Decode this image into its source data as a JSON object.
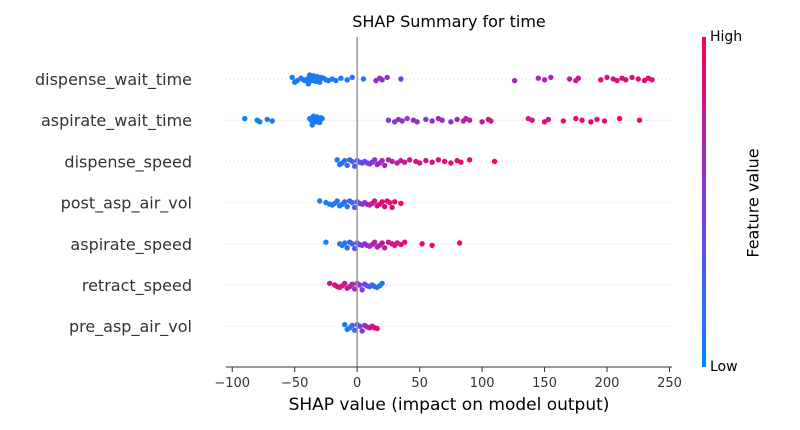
{
  "chart_data": {
    "type": "scatter",
    "title": "SHAP Summary for time",
    "xlabel": "SHAP value (impact on model output)",
    "ylabel": "",
    "xlim": [
      -105,
      252
    ],
    "xticks": [
      -100,
      -50,
      0,
      50,
      100,
      150,
      200,
      250
    ],
    "colorbar": {
      "label": "Feature value",
      "high": "High",
      "low": "Low"
    },
    "colors": {
      "low": "#008bfb",
      "high": "#ff0052",
      "zero_line": "#999999",
      "row_line": "#cccccc"
    },
    "features": [
      {
        "name": "dispense_wait_time",
        "points": [
          [
            -52,
            0.05
          ],
          [
            -50,
            0.1
          ],
          [
            -48,
            0.1
          ],
          [
            -45,
            0.1
          ],
          [
            -43,
            0.1
          ],
          [
            -42,
            0.1
          ],
          [
            -40,
            0.1
          ],
          [
            -39,
            0.1
          ],
          [
            -38,
            0.1
          ],
          [
            -37,
            0.1
          ],
          [
            -36,
            0.1
          ],
          [
            -35,
            0.1
          ],
          [
            -34,
            0.1
          ],
          [
            -33,
            0.1
          ],
          [
            -32,
            0.1
          ],
          [
            -31,
            0.1
          ],
          [
            -30,
            0.1
          ],
          [
            -29,
            0.1
          ],
          [
            -27,
            0.1
          ],
          [
            -25,
            0.1
          ],
          [
            -23,
            0.1
          ],
          [
            -20,
            0.1
          ],
          [
            -17,
            0.1
          ],
          [
            -13,
            0.1
          ],
          [
            -8,
            0.1
          ],
          [
            -4,
            0.15
          ],
          [
            5,
            0.15
          ],
          [
            15,
            0.6
          ],
          [
            18,
            0.6
          ],
          [
            20,
            0.6
          ],
          [
            24,
            0.6
          ],
          [
            35,
            0.5
          ],
          [
            126,
            0.65
          ],
          [
            145,
            0.65
          ],
          [
            150,
            0.7
          ],
          [
            155,
            0.65
          ],
          [
            170,
            0.75
          ],
          [
            175,
            0.8
          ],
          [
            177,
            0.75
          ],
          [
            195,
            0.9
          ],
          [
            200,
            0.85
          ],
          [
            205,
            0.85
          ],
          [
            208,
            0.85
          ],
          [
            212,
            0.85
          ],
          [
            215,
            0.85
          ],
          [
            220,
            0.85
          ],
          [
            225,
            0.9
          ],
          [
            230,
            0.9
          ],
          [
            233,
            0.9
          ],
          [
            236,
            0.9
          ]
        ]
      },
      {
        "name": "aspirate_wait_time",
        "points": [
          [
            -90,
            0.05
          ],
          [
            -80,
            0.05
          ],
          [
            -78,
            0.05
          ],
          [
            -72,
            0.1
          ],
          [
            -68,
            0.1
          ],
          [
            -38,
            0.1
          ],
          [
            -37,
            0.1
          ],
          [
            -36,
            0.1
          ],
          [
            -35,
            0.1
          ],
          [
            -34,
            0.1
          ],
          [
            -33,
            0.1
          ],
          [
            -32,
            0.1
          ],
          [
            -31,
            0.1
          ],
          [
            -30,
            0.1
          ],
          [
            -29,
            0.1
          ],
          [
            -28,
            0.1
          ],
          [
            25,
            0.5
          ],
          [
            30,
            0.5
          ],
          [
            33,
            0.55
          ],
          [
            36,
            0.55
          ],
          [
            40,
            0.55
          ],
          [
            45,
            0.6
          ],
          [
            48,
            0.6
          ],
          [
            55,
            0.5
          ],
          [
            60,
            0.6
          ],
          [
            65,
            0.65
          ],
          [
            68,
            0.65
          ],
          [
            75,
            0.55
          ],
          [
            80,
            0.7
          ],
          [
            85,
            0.7
          ],
          [
            87,
            0.7
          ],
          [
            90,
            0.75
          ],
          [
            100,
            0.75
          ],
          [
            105,
            0.8
          ],
          [
            107,
            0.8
          ],
          [
            137,
            0.8
          ],
          [
            140,
            0.85
          ],
          [
            150,
            0.85
          ],
          [
            153,
            0.85
          ],
          [
            165,
            0.9
          ],
          [
            175,
            0.9
          ],
          [
            180,
            0.9
          ],
          [
            187,
            0.9
          ],
          [
            192,
            0.9
          ],
          [
            198,
            0.9
          ],
          [
            210,
            0.9
          ],
          [
            226,
            0.9
          ]
        ]
      },
      {
        "name": "dispense_speed",
        "points": [
          [
            -16,
            0.1
          ],
          [
            -14,
            0.15
          ],
          [
            -12,
            0.15
          ],
          [
            -10,
            0.2
          ],
          [
            -8,
            0.2
          ],
          [
            -6,
            0.25
          ],
          [
            -4,
            0.25
          ],
          [
            -2,
            0.3
          ],
          [
            0,
            0.3
          ],
          [
            2,
            0.35
          ],
          [
            4,
            0.4
          ],
          [
            6,
            0.4
          ],
          [
            8,
            0.45
          ],
          [
            10,
            0.5
          ],
          [
            12,
            0.5
          ],
          [
            14,
            0.55
          ],
          [
            16,
            0.6
          ],
          [
            18,
            0.6
          ],
          [
            20,
            0.65
          ],
          [
            22,
            0.65
          ],
          [
            25,
            0.7
          ],
          [
            28,
            0.7
          ],
          [
            32,
            0.75
          ],
          [
            35,
            0.75
          ],
          [
            38,
            0.8
          ],
          [
            42,
            0.8
          ],
          [
            47,
            0.8
          ],
          [
            50,
            0.85
          ],
          [
            55,
            0.85
          ],
          [
            60,
            0.85
          ],
          [
            65,
            0.85
          ],
          [
            70,
            0.9
          ],
          [
            75,
            0.9
          ],
          [
            80,
            0.9
          ],
          [
            83,
            0.9
          ],
          [
            90,
            0.9
          ],
          [
            110,
            0.95
          ]
        ]
      },
      {
        "name": "post_asp_air_vol",
        "points": [
          [
            -30,
            0.1
          ],
          [
            -25,
            0.05
          ],
          [
            -22,
            0.1
          ],
          [
            -20,
            0.1
          ],
          [
            -18,
            0.1
          ],
          [
            -16,
            0.15
          ],
          [
            -14,
            0.15
          ],
          [
            -12,
            0.15
          ],
          [
            -10,
            0.2
          ],
          [
            -8,
            0.2
          ],
          [
            -6,
            0.25
          ],
          [
            -4,
            0.2
          ],
          [
            -2,
            0.3
          ],
          [
            0,
            0.3
          ],
          [
            2,
            0.4
          ],
          [
            4,
            0.5
          ],
          [
            6,
            0.55
          ],
          [
            8,
            0.6
          ],
          [
            10,
            0.7
          ],
          [
            12,
            0.75
          ],
          [
            14,
            0.8
          ],
          [
            16,
            0.85
          ],
          [
            18,
            0.85
          ],
          [
            20,
            0.9
          ],
          [
            22,
            0.9
          ],
          [
            24,
            0.85
          ],
          [
            26,
            0.9
          ],
          [
            28,
            0.9
          ],
          [
            30,
            0.95
          ],
          [
            35,
            0.95
          ]
        ]
      },
      {
        "name": "aspirate_speed",
        "points": [
          [
            -25,
            0.1
          ],
          [
            -14,
            0.15
          ],
          [
            -12,
            0.1
          ],
          [
            -10,
            0.15
          ],
          [
            -8,
            0.2
          ],
          [
            -6,
            0.2
          ],
          [
            -4,
            0.25
          ],
          [
            -2,
            0.3
          ],
          [
            0,
            0.35
          ],
          [
            2,
            0.4
          ],
          [
            4,
            0.5
          ],
          [
            6,
            0.55
          ],
          [
            8,
            0.6
          ],
          [
            10,
            0.6
          ],
          [
            12,
            0.65
          ],
          [
            14,
            0.7
          ],
          [
            16,
            0.7
          ],
          [
            18,
            0.7
          ],
          [
            20,
            0.75
          ],
          [
            22,
            0.75
          ],
          [
            25,
            0.8
          ],
          [
            28,
            0.8
          ],
          [
            30,
            0.8
          ],
          [
            32,
            0.85
          ],
          [
            35,
            0.85
          ],
          [
            38,
            0.9
          ],
          [
            52,
            0.9
          ],
          [
            60,
            0.9
          ],
          [
            82,
            0.9
          ]
        ]
      },
      {
        "name": "retract_speed",
        "points": [
          [
            -22,
            0.9
          ],
          [
            -18,
            0.9
          ],
          [
            -16,
            0.85
          ],
          [
            -14,
            0.85
          ],
          [
            -12,
            0.8
          ],
          [
            -10,
            0.8
          ],
          [
            -8,
            0.75
          ],
          [
            -6,
            0.75
          ],
          [
            -4,
            0.7
          ],
          [
            -2,
            0.65
          ],
          [
            0,
            0.6
          ],
          [
            2,
            0.5
          ],
          [
            4,
            0.45
          ],
          [
            6,
            0.4
          ],
          [
            8,
            0.35
          ],
          [
            10,
            0.3
          ],
          [
            12,
            0.25
          ],
          [
            14,
            0.2
          ],
          [
            16,
            0.15
          ],
          [
            18,
            0.1
          ],
          [
            20,
            0.1
          ]
        ]
      },
      {
        "name": "pre_asp_air_vol",
        "points": [
          [
            -10,
            0.1
          ],
          [
            -8,
            0.15
          ],
          [
            -6,
            0.15
          ],
          [
            -4,
            0.2
          ],
          [
            -2,
            0.25
          ],
          [
            0,
            0.3
          ],
          [
            2,
            0.4
          ],
          [
            4,
            0.5
          ],
          [
            6,
            0.6
          ],
          [
            8,
            0.7
          ],
          [
            10,
            0.75
          ],
          [
            12,
            0.8
          ],
          [
            14,
            0.85
          ],
          [
            16,
            0.9
          ]
        ]
      }
    ]
  }
}
